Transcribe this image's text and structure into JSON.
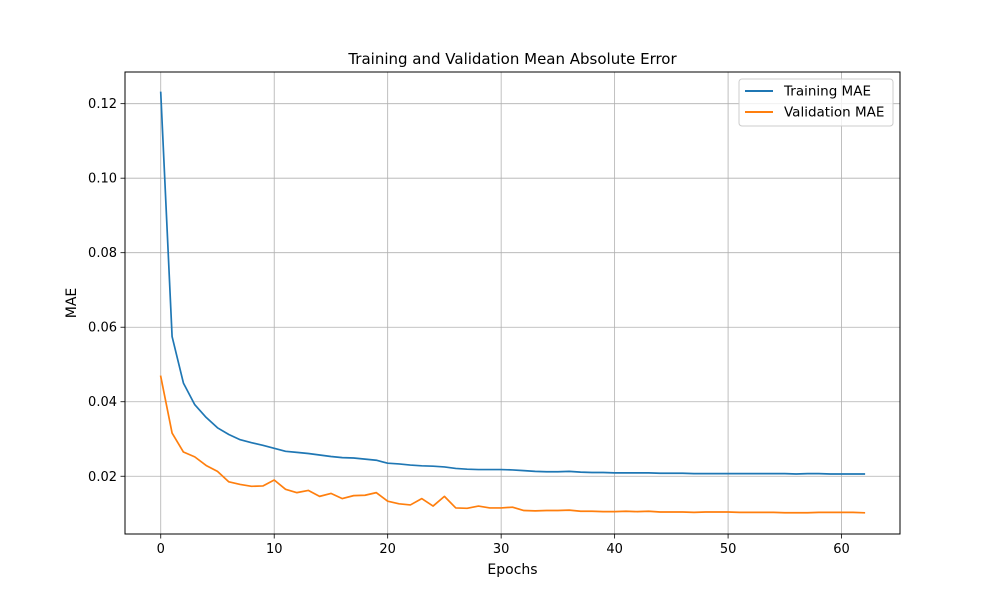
{
  "chart_data": {
    "type": "line",
    "title": "Training and Validation Mean Absolute Error",
    "xlabel": "Epochs",
    "ylabel": "MAE",
    "xlim": [
      -3.15,
      65.15
    ],
    "ylim": [
      0.0045,
      0.1285
    ],
    "x_ticks": [
      0,
      10,
      20,
      30,
      40,
      50,
      60
    ],
    "y_ticks": [
      0.02,
      0.04,
      0.06,
      0.08,
      0.1,
      0.12
    ],
    "y_tick_labels": [
      "0.02",
      "0.04",
      "0.06",
      "0.08",
      "0.10",
      "0.12"
    ],
    "grid": true,
    "legend_position": "top-right",
    "series": [
      {
        "name": "Training MAE",
        "color": "#1f77b4",
        "x": [
          0,
          1,
          2,
          3,
          4,
          5,
          6,
          7,
          8,
          9,
          10,
          11,
          12,
          13,
          14,
          15,
          16,
          17,
          18,
          19,
          20,
          21,
          22,
          23,
          24,
          25,
          26,
          27,
          28,
          29,
          30,
          31,
          32,
          33,
          34,
          35,
          36,
          37,
          38,
          39,
          40,
          41,
          42,
          43,
          44,
          45,
          46,
          47,
          48,
          49,
          50,
          51,
          52,
          53,
          54,
          55,
          56,
          57,
          58,
          59,
          60,
          61,
          62
        ],
        "values": [
          0.123,
          0.0575,
          0.045,
          0.0392,
          0.0358,
          0.033,
          0.0312,
          0.0298,
          0.029,
          0.0283,
          0.0275,
          0.0267,
          0.0264,
          0.0261,
          0.0257,
          0.0253,
          0.025,
          0.0249,
          0.0246,
          0.0243,
          0.0235,
          0.0233,
          0.023,
          0.0228,
          0.0227,
          0.0225,
          0.0221,
          0.0219,
          0.0218,
          0.0218,
          0.0218,
          0.0217,
          0.0215,
          0.0213,
          0.0212,
          0.0212,
          0.0213,
          0.0211,
          0.021,
          0.021,
          0.0209,
          0.0209,
          0.0209,
          0.0209,
          0.0208,
          0.0208,
          0.0208,
          0.0207,
          0.0207,
          0.0207,
          0.0207,
          0.0207,
          0.0207,
          0.0207,
          0.0207,
          0.0207,
          0.0206,
          0.0207,
          0.0207,
          0.0206,
          0.0206,
          0.0206,
          0.0206
        ]
      },
      {
        "name": "Validation MAE",
        "color": "#ff7f0e",
        "x": [
          0,
          1,
          2,
          3,
          4,
          5,
          6,
          7,
          8,
          9,
          10,
          11,
          12,
          13,
          14,
          15,
          16,
          17,
          18,
          19,
          20,
          21,
          22,
          23,
          24,
          25,
          26,
          27,
          28,
          29,
          30,
          31,
          32,
          33,
          34,
          35,
          36,
          37,
          38,
          39,
          40,
          41,
          42,
          43,
          44,
          45,
          46,
          47,
          48,
          49,
          50,
          51,
          52,
          53,
          54,
          55,
          56,
          57,
          58,
          59,
          60,
          61,
          62
        ],
        "values": [
          0.0468,
          0.0316,
          0.0265,
          0.0252,
          0.0229,
          0.0213,
          0.0185,
          0.0178,
          0.0173,
          0.0174,
          0.019,
          0.0165,
          0.0156,
          0.0162,
          0.0146,
          0.0154,
          0.014,
          0.0148,
          0.0149,
          0.0156,
          0.0133,
          0.0126,
          0.0123,
          0.014,
          0.012,
          0.0146,
          0.0115,
          0.0114,
          0.012,
          0.0115,
          0.0115,
          0.0117,
          0.0108,
          0.0107,
          0.0108,
          0.0108,
          0.0109,
          0.0106,
          0.0106,
          0.0105,
          0.0105,
          0.0106,
          0.0105,
          0.0106,
          0.0104,
          0.0104,
          0.0104,
          0.0103,
          0.0104,
          0.0104,
          0.0104,
          0.0103,
          0.0103,
          0.0103,
          0.0103,
          0.0102,
          0.0102,
          0.0102,
          0.0103,
          0.0103,
          0.0103,
          0.0103,
          0.0102
        ]
      }
    ]
  }
}
